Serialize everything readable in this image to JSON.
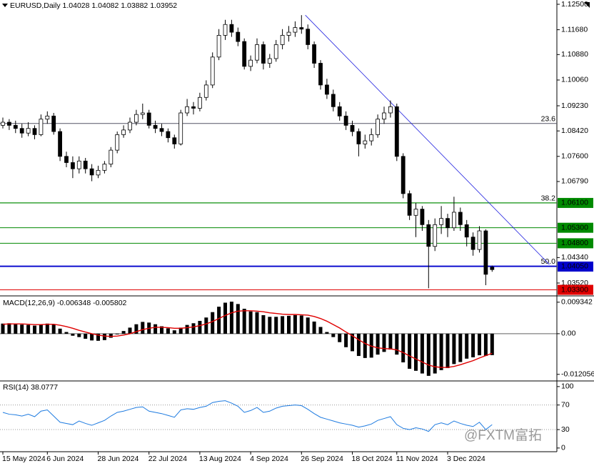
{
  "chart_data": [
    {
      "type": "candlestick",
      "title": "EURUSD,Daily",
      "categories": [
        "15 May 2024",
        null,
        null,
        null,
        null,
        null,
        null,
        "6 Jun 2024",
        null,
        null,
        null,
        null,
        null,
        null,
        null,
        "28 Jun 2024",
        null,
        null,
        null,
        null,
        null,
        null,
        null,
        "22 Jul 2024",
        null,
        null,
        null,
        null,
        null,
        null,
        null,
        "13 Aug 2024",
        null,
        null,
        null,
        null,
        null,
        null,
        null,
        "4 Sep 2024",
        null,
        null,
        null,
        null,
        null,
        null,
        null,
        "26 Sep 2024",
        null,
        null,
        null,
        null,
        null,
        null,
        null,
        "18 Oct 2024",
        null,
        null,
        null,
        null,
        null,
        null,
        "11 Nov 2024",
        null,
        null,
        null,
        null,
        null,
        null,
        null,
        "3 Dec 2024",
        null,
        null,
        null,
        null,
        null,
        null,
        null
      ],
      "candles": [
        [
          1.086,
          1.0885,
          1.085,
          1.087
        ],
        [
          1.087,
          1.088,
          1.0845,
          1.086
        ],
        [
          1.086,
          1.0875,
          1.0835,
          1.085
        ],
        [
          1.085,
          1.0865,
          1.082,
          1.0835
        ],
        [
          1.0835,
          1.087,
          1.0825,
          1.085
        ],
        [
          1.085,
          1.086,
          1.0815,
          1.083
        ],
        [
          1.083,
          1.0895,
          1.0825,
          1.088
        ],
        [
          1.088,
          1.0905,
          1.0865,
          1.089
        ],
        [
          1.089,
          1.09,
          1.083,
          1.084
        ],
        [
          1.084,
          1.085,
          1.0745,
          1.076
        ],
        [
          1.076,
          1.0775,
          1.0725,
          1.074
        ],
        [
          1.074,
          1.076,
          1.069,
          1.072
        ],
        [
          1.072,
          1.076,
          1.0705,
          1.0745
        ],
        [
          1.0745,
          1.0755,
          1.0705,
          1.072
        ],
        [
          1.072,
          1.0735,
          1.068,
          1.07
        ],
        [
          1.07,
          1.073,
          1.069,
          1.0715
        ],
        [
          1.0715,
          1.0745,
          1.0705,
          1.0735
        ],
        [
          1.0735,
          1.079,
          1.0725,
          1.078
        ],
        [
          1.078,
          1.084,
          1.077,
          1.083
        ],
        [
          1.083,
          1.086,
          1.082,
          1.0845
        ],
        [
          1.0845,
          1.0885,
          1.0835,
          1.087
        ],
        [
          1.087,
          1.091,
          1.086,
          1.0895
        ],
        [
          1.0895,
          1.093,
          1.088,
          1.09
        ],
        [
          1.09,
          1.091,
          1.085,
          1.086
        ],
        [
          1.086,
          1.0875,
          1.0835,
          1.085
        ],
        [
          1.085,
          1.0865,
          1.0825,
          1.084
        ],
        [
          1.084,
          1.085,
          1.0805,
          1.082
        ],
        [
          1.082,
          1.083,
          1.0785,
          1.08
        ],
        [
          1.08,
          1.091,
          1.0795,
          1.09
        ],
        [
          1.09,
          1.0945,
          1.089,
          1.092
        ],
        [
          1.092,
          1.0935,
          1.0895,
          1.0915
        ],
        [
          1.0915,
          1.0965,
          1.0905,
          1.095
        ],
        [
          1.095,
          1.1005,
          1.094,
          1.099
        ],
        [
          1.099,
          1.1095,
          1.098,
          1.108
        ],
        [
          1.108,
          1.117,
          1.107,
          1.115
        ],
        [
          1.115,
          1.12,
          1.1135,
          1.1185
        ],
        [
          1.1185,
          1.12,
          1.1145,
          1.116
        ],
        [
          1.116,
          1.1175,
          1.1115,
          1.113
        ],
        [
          1.113,
          1.114,
          1.104,
          1.105
        ],
        [
          1.105,
          1.1085,
          1.1035,
          1.107
        ],
        [
          1.107,
          1.114,
          1.106,
          1.112
        ],
        [
          1.112,
          1.113,
          1.104,
          1.106
        ],
        [
          1.106,
          1.109,
          1.1045,
          1.1075
        ],
        [
          1.1075,
          1.1135,
          1.1065,
          1.112
        ],
        [
          1.112,
          1.117,
          1.1105,
          1.115
        ],
        [
          1.115,
          1.118,
          1.113,
          1.116
        ],
        [
          1.116,
          1.1195,
          1.1145,
          1.1175
        ],
        [
          1.1175,
          1.1215,
          1.1155,
          1.117
        ],
        [
          1.117,
          1.1185,
          1.1105,
          1.112
        ],
        [
          1.112,
          1.113,
          1.1045,
          1.106
        ],
        [
          1.106,
          1.107,
          1.0975,
          1.099
        ],
        [
          1.099,
          1.101,
          1.0945,
          1.096
        ],
        [
          1.096,
          1.0975,
          1.0905,
          1.092
        ],
        [
          1.092,
          1.0935,
          1.0875,
          1.089
        ],
        [
          1.089,
          1.0905,
          1.0845,
          1.086
        ],
        [
          1.086,
          1.0875,
          1.0825,
          1.084
        ],
        [
          1.084,
          1.085,
          1.076,
          1.08
        ],
        [
          1.08,
          1.083,
          1.0785,
          1.081
        ],
        [
          1.081,
          1.085,
          1.0795,
          1.083
        ],
        [
          1.083,
          1.0895,
          1.082,
          1.088
        ],
        [
          1.088,
          1.092,
          1.0865,
          1.09
        ],
        [
          1.09,
          1.094,
          1.0885,
          1.092
        ],
        [
          1.092,
          1.093,
          1.0745,
          1.076
        ],
        [
          1.076,
          1.077,
          1.0625,
          1.064
        ],
        [
          1.064,
          1.065,
          1.0555,
          1.057
        ],
        [
          1.057,
          1.061,
          1.05,
          1.059
        ],
        [
          1.059,
          1.06,
          1.052,
          1.054
        ],
        [
          1.054,
          1.0555,
          1.0335,
          1.047
        ],
        [
          1.047,
          1.056,
          1.0455,
          1.054
        ],
        [
          1.054,
          1.06,
          1.051,
          1.056
        ],
        [
          1.056,
          1.0575,
          1.05,
          1.053
        ],
        [
          1.053,
          1.063,
          1.052,
          1.058
        ],
        [
          1.058,
          1.0595,
          1.052,
          1.054
        ],
        [
          1.054,
          1.0555,
          1.047,
          1.05
        ],
        [
          1.05,
          1.0515,
          1.044,
          1.046
        ],
        [
          1.046,
          1.0535,
          1.045,
          1.052
        ],
        [
          1.052,
          1.0525,
          1.0345,
          1.038
        ],
        [
          1.04028,
          1.04082,
          1.03882,
          1.03952
        ]
      ],
      "up_color": "#ffffff",
      "down_color": "#000000",
      "ylim": [
        1.03128,
        1.12638
      ],
      "yticks": [
        {
          "value": 1.125,
          "label": "1.12500"
        },
        {
          "value": 1.1168,
          "label": "1.11680"
        },
        {
          "value": 1.1088,
          "label": "1.10880"
        },
        {
          "value": 1.1006,
          "label": "1.10060"
        },
        {
          "value": 1.0923,
          "label": "1.09230"
        },
        {
          "value": 1.0842,
          "label": "1.08420"
        },
        {
          "value": 1.076,
          "label": "1.07600"
        },
        {
          "value": 1.0679,
          "label": "1.06790"
        },
        {
          "value": 1.0434,
          "label": "1.04340"
        },
        {
          "value": 1.0352,
          "label": "1.03520"
        }
      ],
      "levels": [
        {
          "price": 1.061,
          "label": "1.06100",
          "color": "#008a00"
        },
        {
          "price": 1.053,
          "label": "1.05300",
          "color": "#008a00"
        },
        {
          "price": 1.048,
          "label": "1.04800",
          "color": "#008a00"
        },
        {
          "price": 1.0405,
          "label": "1.04050",
          "color": "#0000cc"
        },
        {
          "price": 1.033,
          "label": "1.03300",
          "color": "#e00000"
        }
      ],
      "fib_levels": [
        {
          "price": 1.0866,
          "label": "23.6",
          "color": "#555566"
        },
        {
          "price": 1.061,
          "label": "38.2",
          "color": "#008a00"
        },
        {
          "price": 1.0407,
          "label": "50.0",
          "color": "#0000cc"
        }
      ],
      "trendline": {
        "x": [
          47.6,
          86
        ],
        "y": [
          1.1215,
          1.0412
        ],
        "color": "#2020e0"
      }
    },
    {
      "type": "macd",
      "title": "MACD(12,26,9)",
      "series": [
        {
          "color": "#000000",
          "values": [
            0.003,
            0.0031,
            0.0029,
            0.0027,
            0.0026,
            0.0024,
            0.0027,
            0.003,
            0.0027,
            0.0015,
            0.0005,
            -0.0006,
            -0.001,
            -0.0015,
            -0.002,
            -0.0021,
            -0.0019,
            -0.0012,
            -0.0002,
            0.0008,
            0.0018,
            0.0028,
            0.0035,
            0.0033,
            0.0028,
            0.0022,
            0.0016,
            0.001,
            0.0018,
            0.0026,
            0.0031,
            0.0038,
            0.0048,
            0.0064,
            0.008,
            0.0092,
            0.0095,
            0.0088,
            0.0074,
            0.0066,
            0.0064,
            0.0055,
            0.005,
            0.005,
            0.0052,
            0.0053,
            0.0055,
            0.0054,
            0.0048,
            0.0036,
            0.002,
            0.0005,
            -0.001,
            -0.0025,
            -0.004,
            -0.0052,
            -0.0066,
            -0.0072,
            -0.0071,
            -0.0062,
            -0.0054,
            -0.0047,
            -0.0062,
            -0.0085,
            -0.0104,
            -0.011,
            -0.0118,
            -0.0125,
            -0.0118,
            -0.0108,
            -0.0102,
            -0.009,
            -0.0084,
            -0.0074,
            -0.007,
            -0.0064,
            -0.0066,
            -0.006348
          ]
        },
        {
          "color": "#e00000",
          "values": [
            0.0028,
            0.0029,
            0.0029,
            0.0029,
            0.0028,
            0.0027,
            0.0027,
            0.0028,
            0.0028,
            0.0025,
            0.0021,
            0.0016,
            0.001,
            0.0005,
            0,
            -0.0004,
            -0.0007,
            -0.0008,
            -0.0007,
            -0.0004,
            0,
            0.0006,
            0.0012,
            0.0016,
            0.0019,
            0.0019,
            0.0018,
            0.0016,
            0.0016,
            0.0018,
            0.002,
            0.0024,
            0.0029,
            0.0036,
            0.0045,
            0.0054,
            0.0062,
            0.0067,
            0.0068,
            0.0068,
            0.0067,
            0.0065,
            0.0062,
            0.006,
            0.0058,
            0.0057,
            0.0057,
            0.0056,
            0.0055,
            0.0051,
            0.0045,
            0.0037,
            0.0027,
            0.0017,
            0.0005,
            -0.0006,
            -0.0018,
            -0.0029,
            -0.0037,
            -0.0042,
            -0.0044,
            -0.0045,
            -0.0048,
            -0.0056,
            -0.0066,
            -0.0075,
            -0.0084,
            -0.0093,
            -0.0098,
            -0.01,
            -0.01,
            -0.0097,
            -0.0092,
            -0.0086,
            -0.008,
            -0.0072,
            -0.0065,
            -0.005802
          ]
        }
      ],
      "ylim": [
        -0.0138,
        0.011
      ],
      "yticks": [
        0.009342,
        {
          "value": 0,
          "label": "0.00"
        },
        -0.012056
      ]
    },
    {
      "type": "line",
      "title": "RSI(14)",
      "color": "#1e7be0",
      "values": [
        58,
        55,
        54,
        52,
        55,
        51,
        60,
        62,
        52,
        42,
        40,
        38,
        44,
        40,
        37,
        41,
        45,
        52,
        58,
        60,
        63,
        66,
        67,
        60,
        58,
        56,
        53,
        50,
        62,
        64,
        63,
        66,
        68,
        74,
        76,
        77,
        73,
        68,
        58,
        61,
        66,
        58,
        60,
        65,
        68,
        69,
        70,
        69,
        63,
        56,
        50,
        47,
        44,
        41,
        39,
        37,
        34,
        36,
        39,
        45,
        48,
        51,
        38,
        32,
        30,
        33,
        31,
        27,
        38,
        41,
        38,
        44,
        40,
        37,
        35,
        42,
        30,
        38.0777
      ],
      "ylim": [
        -6,
        108
      ],
      "yticks": [
        100,
        70,
        30,
        0
      ],
      "levels": [
        70,
        30
      ]
    }
  ],
  "watermark": "@FXTM富拓"
}
